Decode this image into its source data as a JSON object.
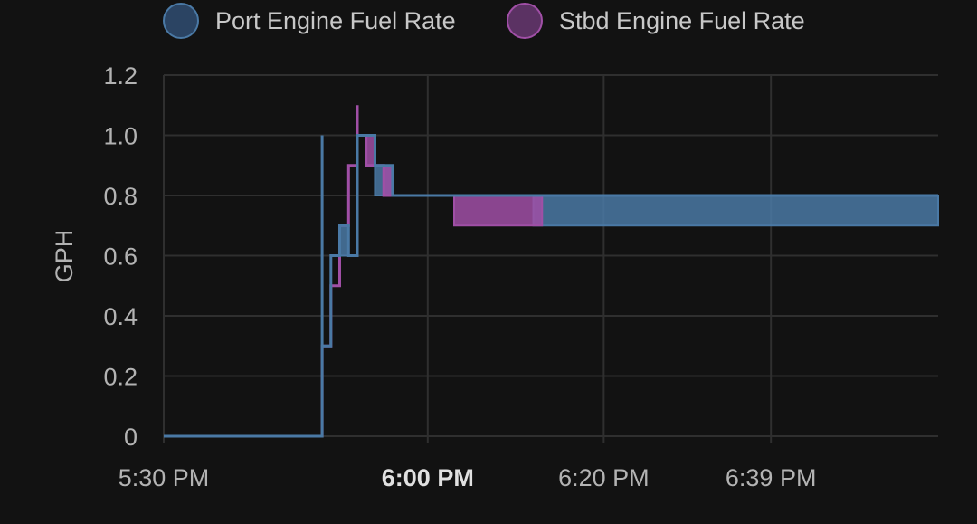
{
  "chart_data": {
    "type": "line",
    "title": "",
    "xlabel": "",
    "ylabel": "GPH",
    "ylim": [
      0,
      1.2
    ],
    "yticks": [
      0,
      0.2,
      0.4,
      0.6,
      0.8,
      1.0,
      1.2
    ],
    "ytick_labels": [
      "0",
      "0.2",
      "0.4",
      "0.6",
      "0.8",
      "1.0",
      "1.2"
    ],
    "xlim": [
      "5:30 PM",
      "6:58 PM"
    ],
    "xticks": [
      {
        "time": "5:30 PM",
        "label": "5:30 PM",
        "bold": false
      },
      {
        "time": "6:00 PM",
        "label": "6:00 PM",
        "bold": true
      },
      {
        "time": "6:20 PM",
        "label": "6:20 PM",
        "bold": false
      },
      {
        "time": "6:39 PM",
        "label": "6:39 PM",
        "bold": false
      }
    ],
    "grid": true,
    "legend_position": "top",
    "series": [
      {
        "name": "Port Engine Fuel Rate",
        "color": "#4a79a5",
        "fill": "#2b4463",
        "points": [
          [
            "5:30 PM",
            0
          ],
          [
            "5:48 PM",
            0
          ],
          [
            "5:48 PM",
            1.0
          ],
          [
            "5:48 PM",
            0.3
          ],
          [
            "5:49 PM",
            0.3
          ],
          [
            "5:49 PM",
            0.6
          ],
          [
            "5:50 PM",
            0.6
          ],
          [
            "5:50 PM",
            0.7
          ],
          [
            "5:51 PM",
            0.7
          ],
          [
            "5:51 PM",
            0.6
          ],
          [
            "5:52 PM",
            0.6
          ],
          [
            "5:52 PM",
            0.8
          ],
          [
            "5:52 PM",
            1.0
          ],
          [
            "5:54 PM",
            1.0
          ],
          [
            "5:54 PM",
            0.9
          ],
          [
            "5:56 PM",
            0.9
          ],
          [
            "5:56 PM",
            0.8
          ],
          [
            "5:59 PM",
            0.8
          ],
          [
            "6:03 PM",
            0.8
          ],
          [
            "6:58 PM",
            0.8
          ]
        ],
        "bands": [
          {
            "from": "5:50 PM",
            "to": "5:51 PM",
            "low": 0.6,
            "high": 0.7
          },
          {
            "from": "5:54 PM",
            "to": "5:56 PM",
            "low": 0.8,
            "high": 0.9
          },
          {
            "from": "6:12 PM",
            "to": "6:58 PM",
            "low": 0.7,
            "high": 0.8
          }
        ]
      },
      {
        "name": "Stbd Engine Fuel Rate",
        "color": "#a04fa6",
        "fill": "#5b3263",
        "points": [
          [
            "5:30 PM",
            0
          ],
          [
            "5:48 PM",
            0
          ],
          [
            "5:48 PM",
            0.3
          ],
          [
            "5:49 PM",
            0.3
          ],
          [
            "5:49 PM",
            0.4
          ],
          [
            "5:49 PM",
            0.5
          ],
          [
            "5:50 PM",
            0.5
          ],
          [
            "5:50 PM",
            0.7
          ],
          [
            "5:51 PM",
            0.7
          ],
          [
            "5:51 PM",
            0.9
          ],
          [
            "5:52 PM",
            0.9
          ],
          [
            "5:52 PM",
            1.1
          ],
          [
            "5:52 PM",
            1.0
          ],
          [
            "5:53 PM",
            1.0
          ],
          [
            "5:53 PM",
            0.9
          ],
          [
            "5:55 PM",
            0.9
          ],
          [
            "5:55 PM",
            0.8
          ],
          [
            "5:57 PM",
            0.8
          ],
          [
            "6:03 PM",
            0.8
          ]
        ],
        "bands": [
          {
            "from": "5:53 PM",
            "to": "5:54 PM",
            "low": 0.9,
            "high": 1.0
          },
          {
            "from": "5:55 PM",
            "to": "5:56 PM",
            "low": 0.8,
            "high": 0.9
          },
          {
            "from": "6:03 PM",
            "to": "6:13 PM",
            "low": 0.7,
            "high": 0.8
          }
        ]
      }
    ]
  }
}
